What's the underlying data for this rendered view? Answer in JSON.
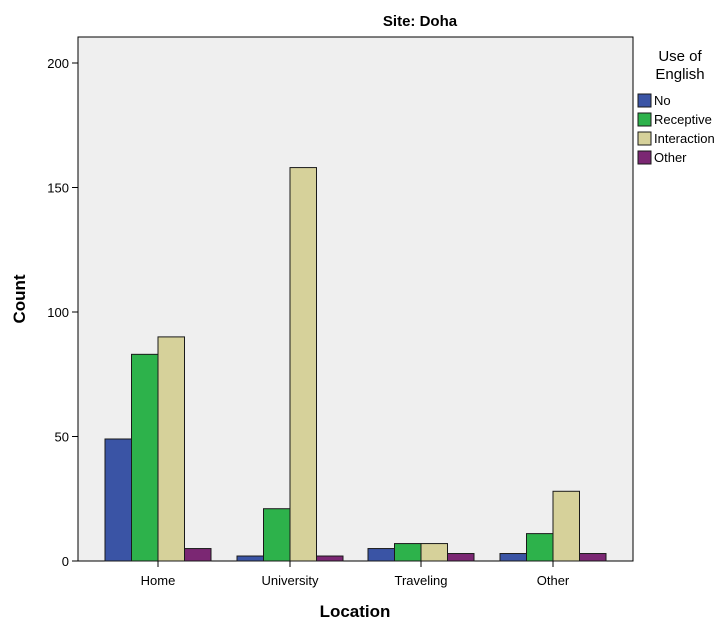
{
  "chart_data": {
    "type": "bar",
    "title": "Site: Doha",
    "xlabel": "Location",
    "ylabel": "Count",
    "categories": [
      "Home",
      "University",
      "Traveling",
      "Other"
    ],
    "series": [
      {
        "name": "No",
        "values": [
          49,
          2,
          5,
          3
        ]
      },
      {
        "name": "Receptive",
        "values": [
          83,
          21,
          7,
          11
        ]
      },
      {
        "name": "Interaction",
        "values": [
          90,
          158,
          7,
          28
        ]
      },
      {
        "name": "Other",
        "values": [
          5,
          2,
          3,
          3
        ]
      }
    ],
    "ylim": [
      0,
      200
    ],
    "yticks": [
      0,
      50,
      100,
      150,
      200
    ],
    "legend_title_lines": [
      "Use of",
      "English"
    ],
    "legend_position": "right",
    "grid": false
  },
  "colors": {
    "series": [
      "#3A54A5",
      "#2DB24B",
      "#D6D19A",
      "#7B2773"
    ],
    "plot_background": "#EFEFEF",
    "bar_outline": "#1A1A1A",
    "frame": "#000000"
  }
}
